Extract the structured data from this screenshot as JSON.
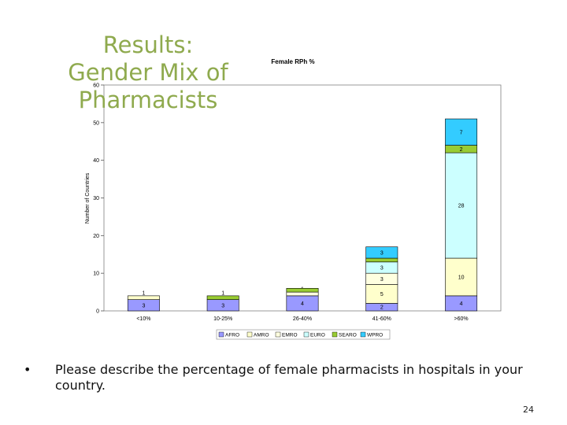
{
  "slide": {
    "title_lines": [
      "Results:",
      "Gender Mix of",
      "Pharmacists"
    ],
    "bullet_symbol": "•",
    "bullet_text": "Please describe the percentage of female pharmacists in hospitals in your country.",
    "page_number": "24"
  },
  "chart_data": {
    "type": "bar",
    "stacked": true,
    "title": "Female RPh %",
    "xlabel": "",
    "ylabel": "Number of Countries",
    "ylim": [
      0,
      60
    ],
    "yticks": [
      "0",
      "10",
      "20",
      "30",
      "40",
      "50",
      "60"
    ],
    "categories": [
      "<10%",
      "10-25%",
      "26-40%",
      "41-60%",
      ">60%"
    ],
    "series": [
      {
        "name": "AFRO",
        "color": "#9999ff",
        "values": [
          3,
          3,
          4,
          2,
          4
        ],
        "labels": [
          "3",
          "3",
          "4",
          "2",
          "4"
        ]
      },
      {
        "name": "AMRO",
        "color": "#ffffcc",
        "values": [
          1,
          0,
          0,
          5,
          10
        ],
        "labels": [
          "1",
          "",
          "",
          "5",
          "10"
        ]
      },
      {
        "name": "EMRO",
        "color": "#ffffe0",
        "values": [
          0,
          0,
          1,
          3,
          0
        ],
        "labels": [
          "",
          "",
          "1",
          "3",
          ""
        ]
      },
      {
        "name": "EURO",
        "color": "#ccffff",
        "values": [
          0,
          0,
          0,
          3,
          28
        ],
        "labels": [
          "",
          "",
          "",
          "3",
          "28"
        ]
      },
      {
        "name": "SEARO",
        "color": "#99cc33",
        "values": [
          0,
          1,
          1,
          1,
          2
        ],
        "labels": [
          "",
          "1",
          "",
          "",
          "2"
        ]
      },
      {
        "name": "WPRO",
        "color": "#33ccff",
        "values": [
          0,
          0,
          0,
          3,
          7
        ],
        "labels": [
          "",
          "",
          "",
          "3",
          "7"
        ]
      }
    ],
    "grid": false,
    "legend_position": "bottom"
  }
}
